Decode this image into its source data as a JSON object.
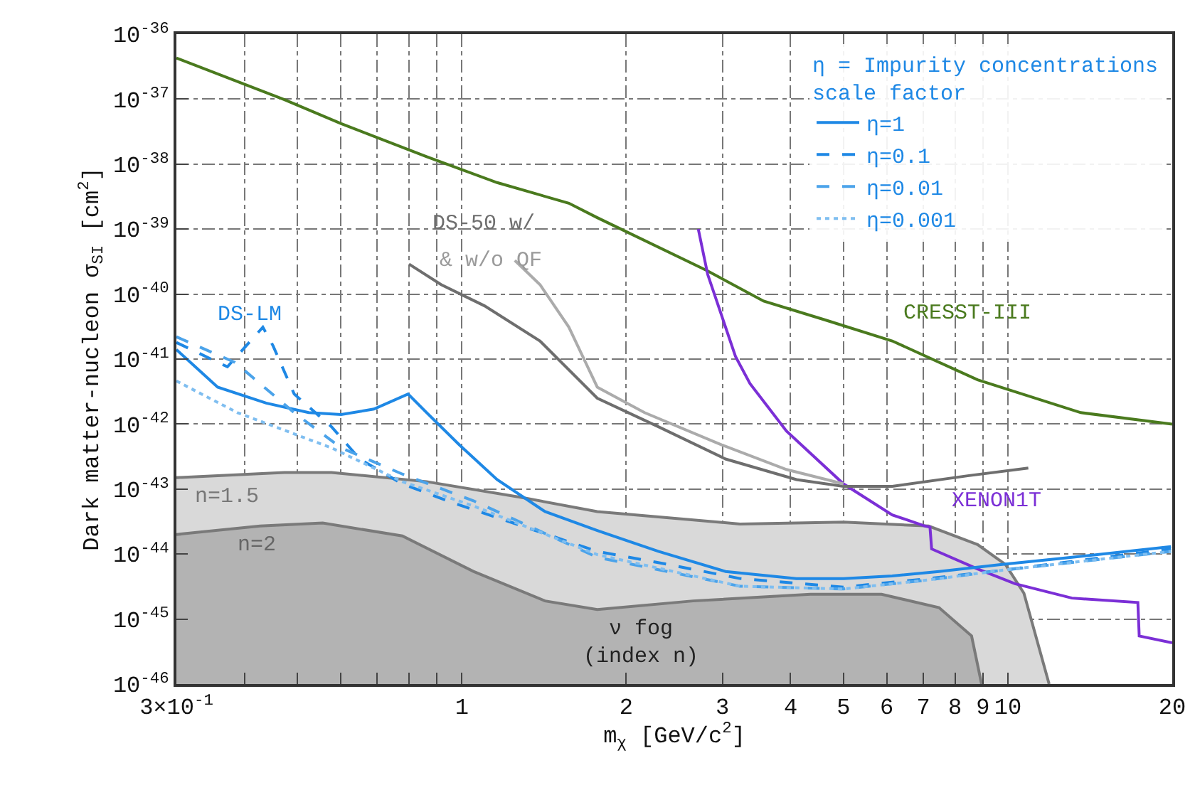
{
  "chart_data": {
    "type": "line",
    "xlabel": "m$_{χ}$ [GeV/c$^{2}$]",
    "ylabel": "Dark matter-nucleon σ$_{SI}$ [cm$^{2}$]",
    "legend_title": "η = Impurity concentrations\nscale factor",
    "legend": "top right",
    "log": "xy",
    "grid": true,
    "line_style": "solid",
    "xlim": [
      0.3,
      20
    ],
    "xticks": [
      {
        "value": 0.3,
        "label": "3×10$^{-1}$"
      },
      {
        "value": 0.4,
        "label": null
      },
      {
        "value": 0.5,
        "label": null
      },
      {
        "value": 0.6,
        "label": null
      },
      {
        "value": 0.7,
        "label": null
      },
      {
        "value": 0.8,
        "label": null
      },
      {
        "value": 0.9,
        "label": null
      },
      1,
      2,
      3,
      4,
      5,
      6,
      7,
      8,
      9,
      10,
      20
    ],
    "ylim": [
      1e-46,
      1e-36
    ],
    "yticks": [
      {
        "value": 1e-46,
        "label": "10$^{-46}$"
      },
      {
        "value": 1e-45,
        "label": "10$^{-45}$"
      },
      {
        "value": 1e-44,
        "label": "10$^{-44}$"
      },
      {
        "value": 1e-43,
        "label": "10$^{-43}$"
      },
      {
        "value": 1e-42,
        "label": "10$^{-42}$"
      },
      {
        "value": 1e-41,
        "label": "10$^{-41}$"
      },
      {
        "value": 1e-40,
        "label": "10$^{-40}$"
      },
      {
        "value": 1e-39,
        "label": "10$^{-39}$"
      },
      {
        "value": 1e-38,
        "label": "10$^{-38}$"
      },
      {
        "value": 1e-37,
        "label": "10$^{-37}$"
      },
      {
        "value": 1e-36,
        "label": "10$^{-36}$"
      }
    ],
    "series": [
      {
        "type": "area",
        "color": "#d9d9d9",
        "x": [
          0.3,
          0.473,
          0.577,
          0.862,
          1.29,
          1.77,
          3.23,
          5.0,
          7.16,
          8.8,
          9.9,
          10.7,
          11.9
        ],
        "values": [
          1.5e-43,
          1.8e-43,
          1.8e-43,
          1.3e-43,
          7.4e-44,
          4.5e-44,
          2.9e-44,
          3.1e-44,
          2.7e-44,
          1.4e-44,
          6.9e-45,
          2.5e-45,
          1e-46
        ]
      },
      {
        "type": "area",
        "color": "#b3b3b3",
        "x": [
          0.3,
          0.427,
          0.556,
          0.778,
          1.05,
          1.42,
          1.77,
          2.65,
          4.35,
          5.87,
          7.48,
          8.58,
          8.95
        ],
        "values": [
          2e-44,
          2.7e-44,
          3e-44,
          1.9e-44,
          5.4e-45,
          1.9e-45,
          1.4e-45,
          1.9e-45,
          2.4e-45,
          2.4e-45,
          1.5e-45,
          5.5e-46,
          1e-46
        ]
      },
      {
        "color": "#4a7a1e",
        "x": [
          0.3,
          0.473,
          0.601,
          0.862,
          1.16,
          1.57,
          1.77,
          2.81,
          3.57,
          4.63,
          6.14,
          8.8,
          13.6,
          20
        ],
        "values": [
          4.3e-37,
          9.8e-38,
          4.2e-38,
          1.3e-38,
          5.2e-39,
          2.5e-39,
          1.5e-39,
          2.3e-40,
          7.8e-41,
          4e-41,
          1.9e-41,
          4.8e-42,
          1.5e-42,
          1e-42
        ]
      },
      {
        "color": "#7b2fd6",
        "x": [
          2.71,
          2.82,
          3.17,
          3.37,
          3.93,
          5.0,
          6.14,
          7.05,
          7.2,
          7.25,
          8.8,
          10.3,
          13.1,
          17.3,
          17.4,
          20
        ],
        "values": [
          1e-39,
          2e-40,
          1.1e-41,
          4.2e-42,
          7.8e-43,
          1.2e-43,
          4e-44,
          2.7e-44,
          2.6e-44,
          1.2e-44,
          5.9e-45,
          3.5e-45,
          2.1e-45,
          1.8e-45,
          5.5e-46,
          4.3e-46
        ]
      },
      {
        "color": "#6e6e6e",
        "x": [
          0.8,
          0.916,
          1.1,
          1.39,
          1.77,
          2.29,
          3.04,
          4.1,
          5.0,
          6.14,
          8.44,
          10.9
        ],
        "values": [
          2.9e-40,
          1.4e-40,
          6.6e-41,
          1.9e-41,
          2.5e-42,
          9.1e-43,
          2.9e-43,
          1.4e-43,
          1.1e-43,
          1.1e-43,
          1.6e-43,
          2.1e-43
        ]
      },
      {
        "color": "#ababab",
        "x": [
          1.25,
          1.39,
          1.57,
          1.77,
          2.16,
          2.99,
          3.93,
          5.0
        ],
        "values": [
          3.3e-40,
          1.4e-40,
          3.1e-41,
          3.7e-42,
          1.5e-42,
          4.8e-43,
          2e-43,
          1.2e-43
        ]
      },
      {
        "name": "η=1",
        "color": "#1e88e5",
        "line_style": "solid",
        "x": [
          0.3,
          0.357,
          0.438,
          0.524,
          0.601,
          0.69,
          0.797,
          0.862,
          0.989,
          1.16,
          1.42,
          1.77,
          2.29,
          3.04,
          4.1,
          5.0,
          6.14,
          7.48,
          9.7,
          13.1,
          19.9
        ],
        "values": [
          1.4e-41,
          3.7e-42,
          2.1e-42,
          1.5e-42,
          1.4e-42,
          1.7e-42,
          2.9e-42,
          1.5e-42,
          4.8e-43,
          1.4e-43,
          4.5e-44,
          2.3e-44,
          1.1e-44,
          5.4e-45,
          4.2e-45,
          4.2e-45,
          4.6e-45,
          5.4e-45,
          6.9e-45,
          8.9e-45,
          1.3e-44
        ]
      },
      {
        "name": "η=0.1",
        "color": "#1e88e5",
        "line_style": "dashed",
        "x": [
          0.3,
          0.372,
          0.432,
          0.451,
          0.493,
          0.577,
          0.65,
          0.778,
          0.955,
          1.29,
          1.77,
          2.39,
          3.23,
          5.0,
          7.16,
          9.7,
          19.9
        ],
        "values": [
          1.8e-41,
          7.6e-42,
          3.1e-41,
          1.6e-41,
          2.9e-42,
          9.1e-43,
          2.9e-43,
          1.2e-43,
          6.3e-44,
          2.7e-44,
          1.1e-44,
          6.9e-45,
          4.2e-45,
          3.1e-45,
          4.2e-45,
          5.6e-45,
          1.2e-44
        ]
      },
      {
        "name": "η=0.01",
        "color": "#4ba3ea",
        "line_style": "dashed",
        "x": [
          0.3,
          0.384,
          0.493,
          0.601,
          0.778,
          1.05,
          1.77,
          3.23,
          5.0,
          7.16,
          9.7,
          19.9
        ],
        "values": [
          2.2e-41,
          8.9e-42,
          1.5e-42,
          4.3e-43,
          1.7e-43,
          6.6e-44,
          8.9e-45,
          3.2e-45,
          2.9e-45,
          4e-45,
          5.6e-45,
          1.1e-44
        ]
      },
      {
        "name": "η=0.001",
        "color": "#7fbef0",
        "line_style": "dotted",
        "x": [
          0.3,
          0.388,
          0.577,
          0.778,
          1.05,
          1.77,
          3.23,
          5.0,
          7.16,
          9.7,
          19.9
        ],
        "values": [
          4.6e-42,
          1.5e-42,
          4.3e-43,
          1.3e-43,
          5.5e-44,
          9.8e-45,
          3.2e-45,
          2.9e-45,
          4e-45,
          5.6e-45,
          1.1e-44
        ]
      }
    ],
    "annotations": [
      "DS-LM",
      "DS-50 w/",
      "& w/o QF",
      "CRESST-III",
      "XENON1T",
      "n=1.5",
      "n=2",
      "ν fog\n(index n)"
    ]
  }
}
